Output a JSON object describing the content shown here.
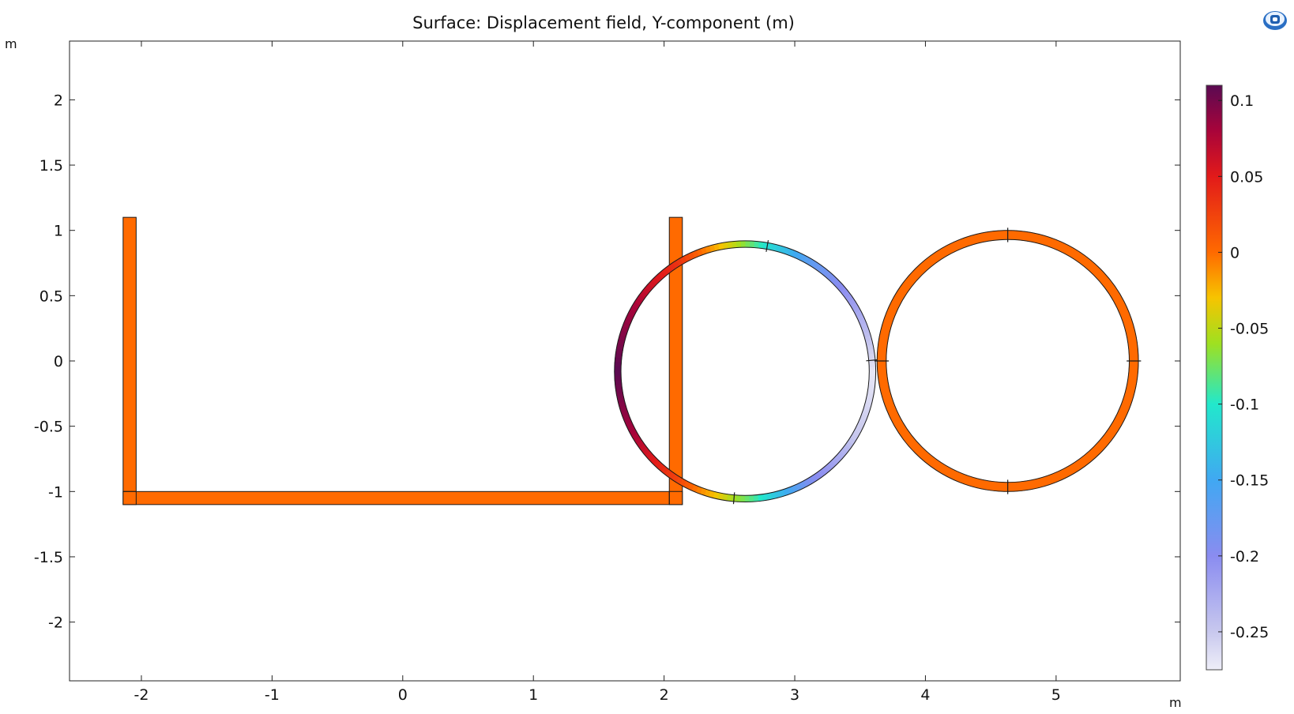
{
  "chart_data": {
    "type": "heatmap",
    "title": "Surface: Displacement field, Y-component (m)",
    "xlabel": "m",
    "ylabel": "m",
    "xlim": [
      -2.55,
      5.95
    ],
    "ylim": [
      -2.45,
      2.45
    ],
    "x_ticks": [
      -2,
      -1,
      0,
      1,
      2,
      3,
      4,
      5
    ],
    "y_ticks": [
      2,
      1.5,
      1,
      0.5,
      0,
      -0.5,
      -1,
      -1.5,
      -2
    ],
    "grid": false,
    "colorbar": {
      "min": -0.275,
      "max": 0.11,
      "ticks": [
        0.1,
        0.05,
        0,
        -0.05,
        -0.1,
        -0.15,
        -0.2,
        -0.25
      ],
      "placement": "right",
      "stops": [
        {
          "v": 0.11,
          "color": "#5a0a52"
        },
        {
          "v": 0.08,
          "color": "#a8043a"
        },
        {
          "v": 0.05,
          "color": "#e21a1a"
        },
        {
          "v": 0.0,
          "color": "#ff6a00"
        },
        {
          "v": -0.03,
          "color": "#f7c400"
        },
        {
          "v": -0.06,
          "color": "#9fe020"
        },
        {
          "v": -0.1,
          "color": "#22e8cc"
        },
        {
          "v": -0.15,
          "color": "#40a8f2"
        },
        {
          "v": -0.2,
          "color": "#8a8cf0"
        },
        {
          "v": -0.25,
          "color": "#c8c8ee"
        },
        {
          "v": -0.275,
          "color": "#eeeef8"
        }
      ]
    },
    "frame_color": "#ff6a00",
    "frame_value": 0,
    "frame_members": [
      {
        "name": "left-post",
        "x0": -2.14,
        "x1": -2.04,
        "y0": -1.1,
        "y1": 1.1
      },
      {
        "name": "base-beam",
        "x0": -2.14,
        "x1": 2.14,
        "y0": -1.1,
        "y1": -1.0
      },
      {
        "name": "right-post",
        "x0": 2.04,
        "x1": 2.14,
        "y0": -1.1,
        "y1": 1.1
      }
    ],
    "rings": [
      {
        "name": "deformed-ring",
        "cx": 2.62,
        "cy": -0.08,
        "r_outer": 1.0,
        "r_inner": 0.95,
        "angle_values_deg": [
          [
            0,
            -0.27
          ],
          [
            30,
            -0.22
          ],
          [
            60,
            -0.17
          ],
          [
            80,
            -0.11
          ],
          [
            95,
            -0.05
          ],
          [
            120,
            0.03
          ],
          [
            150,
            0.08
          ],
          [
            180,
            0.11
          ],
          [
            210,
            0.08
          ],
          [
            240,
            0.02
          ],
          [
            260,
            -0.04
          ],
          [
            275,
            -0.09
          ],
          [
            300,
            -0.19
          ],
          [
            330,
            -0.25
          ],
          [
            360,
            -0.27
          ]
        ],
        "segment_marks_deg": [
          80,
          5,
          265
        ]
      },
      {
        "name": "reference-ring",
        "cx": 4.63,
        "cy": 0.0,
        "r_outer": 1.0,
        "r_inner": 0.93,
        "value": 0,
        "segment_marks_deg": [
          0,
          90,
          180,
          270
        ]
      }
    ]
  }
}
